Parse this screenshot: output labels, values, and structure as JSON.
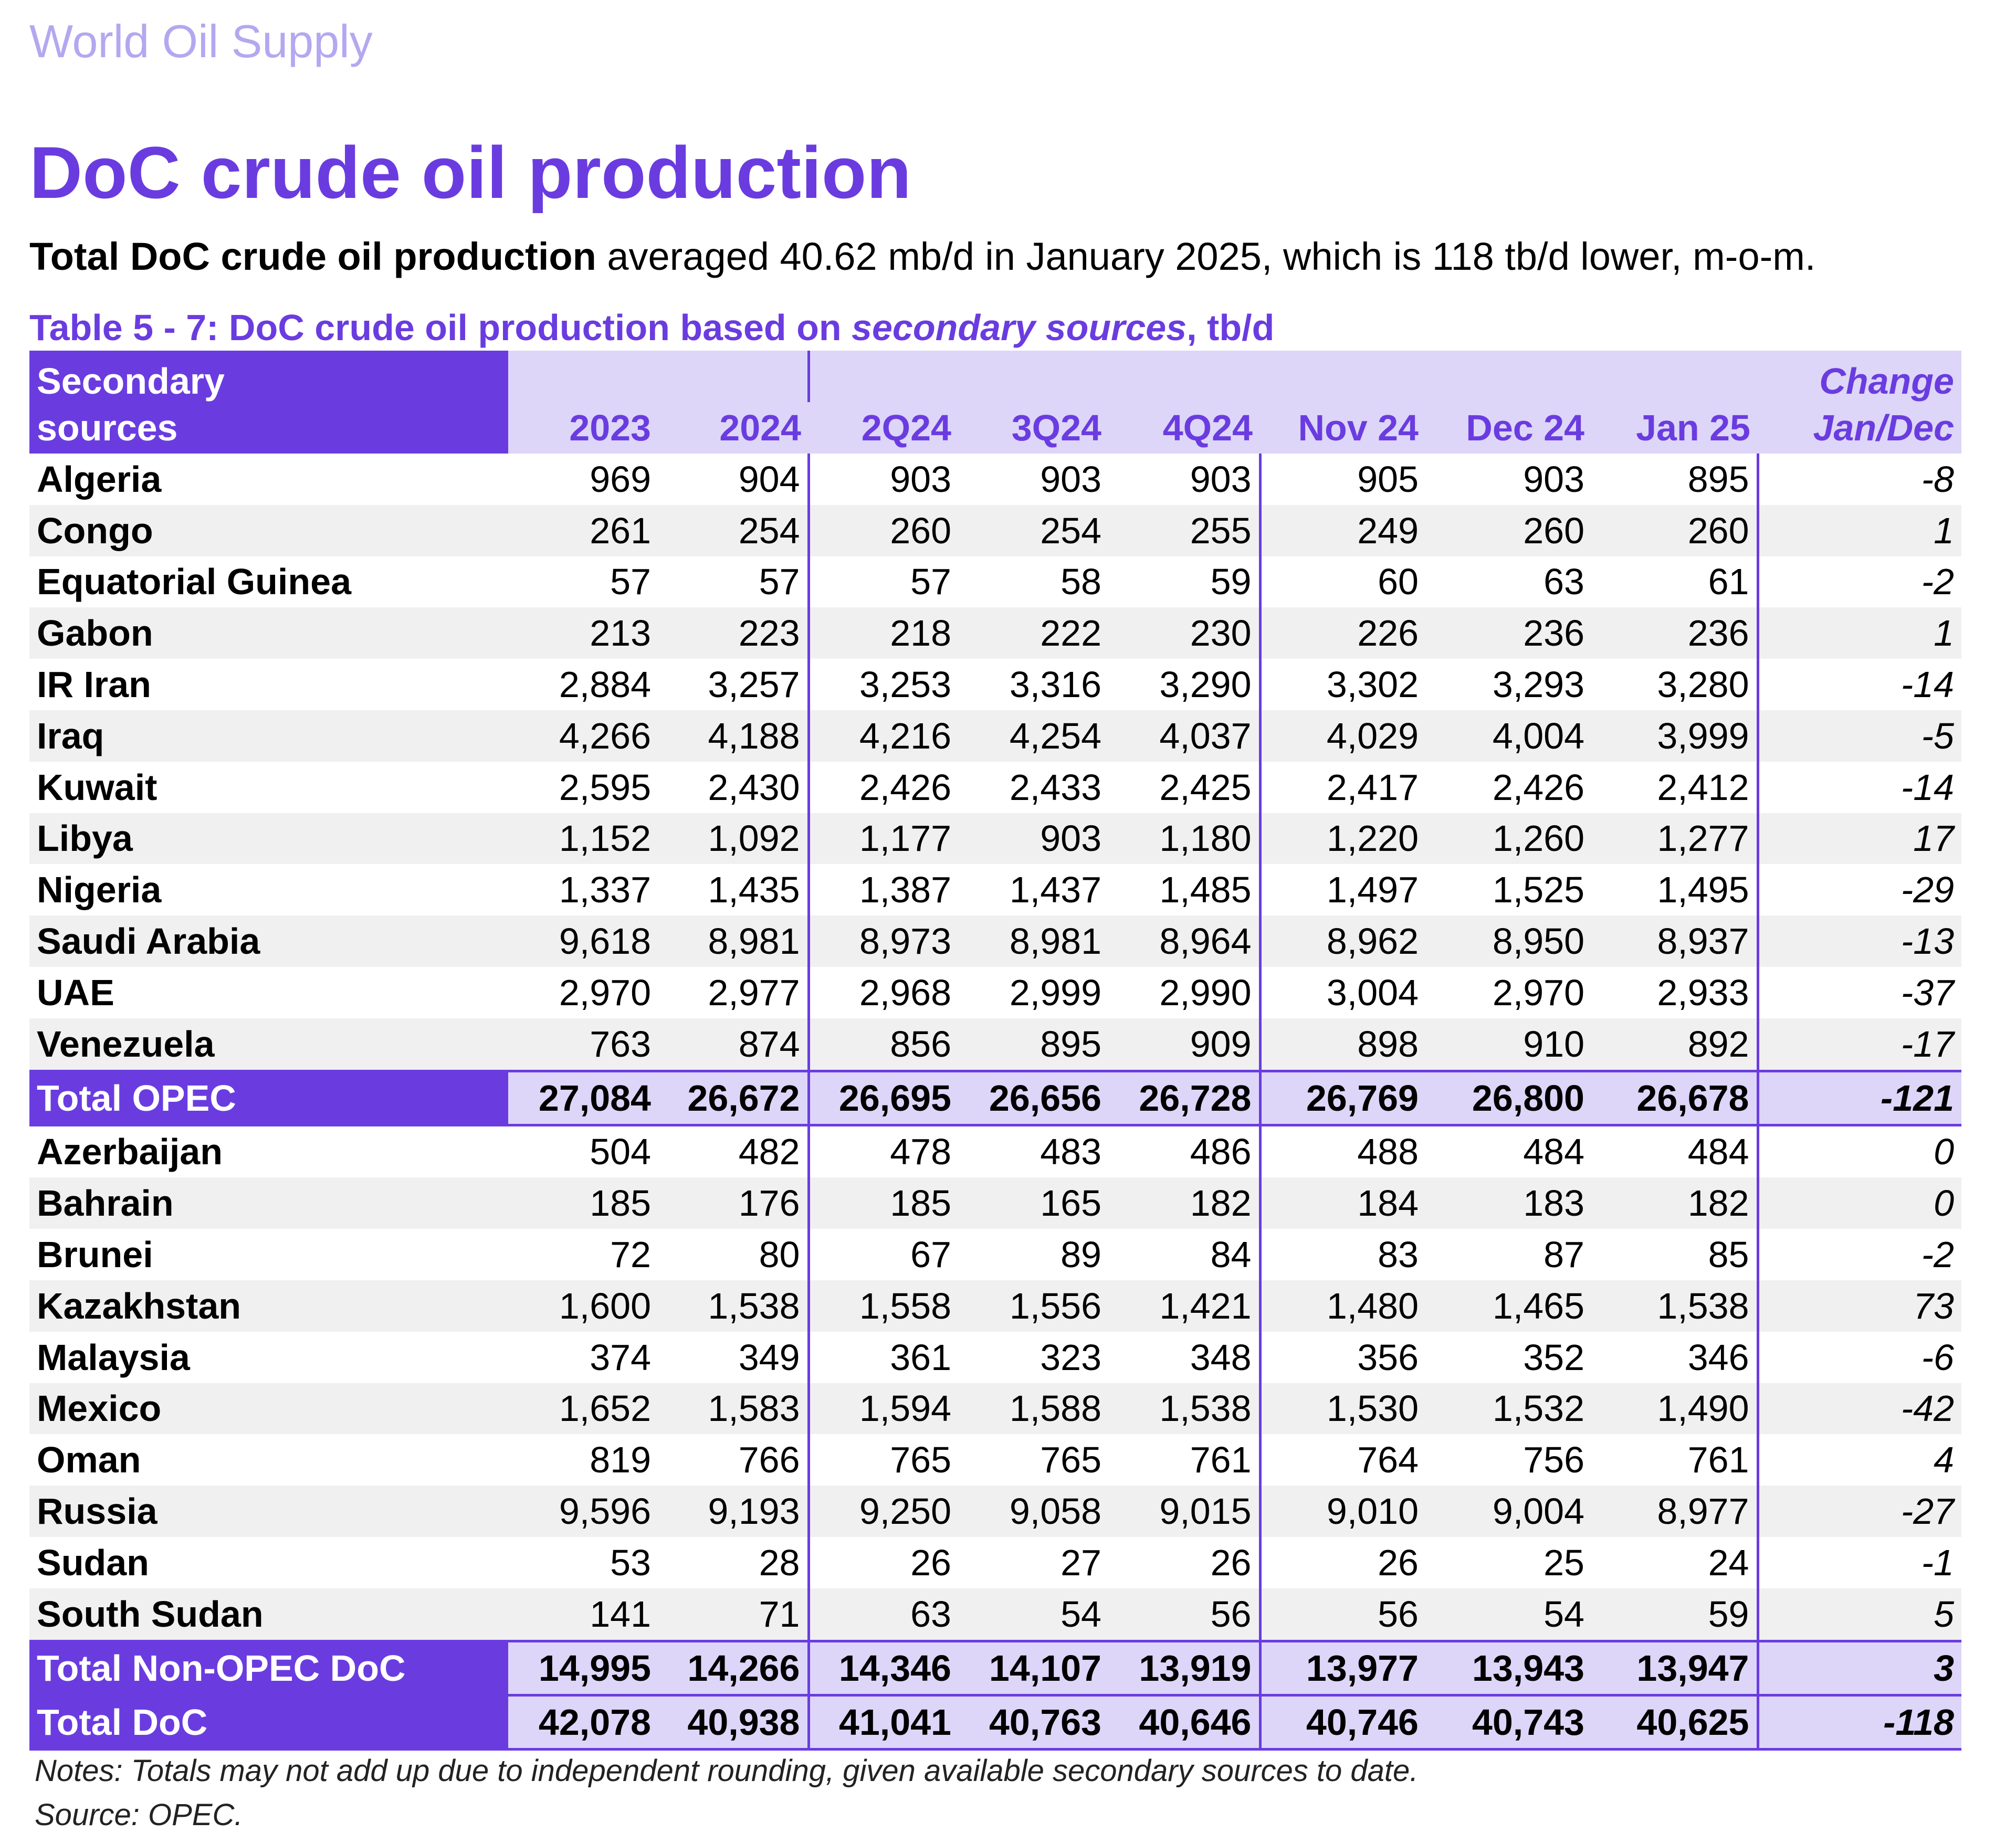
{
  "section_label": "World Oil Supply",
  "title": "DoC crude oil production",
  "lead_bold": "Total DoC crude oil production",
  "lead_rest": " averaged 40.62 mb/d in January 2025, which is 118 tb/d lower, m-o-m.",
  "caption_pre": "Table 5 - 7: DoC crude oil production based on ",
  "caption_italic": "secondary sources",
  "caption_post": ", tb/d",
  "header": {
    "src_line1": "Secondary",
    "src_line2": "sources",
    "columns": [
      "2023",
      "2024",
      "2Q24",
      "3Q24",
      "4Q24",
      "Nov 24",
      "Dec 24",
      "Jan 25"
    ],
    "change_line1": "Change",
    "change_line2": "Jan/Dec"
  },
  "opec_rows": [
    {
      "name": "Algeria",
      "values": [
        "969",
        "904",
        "903",
        "903",
        "903",
        "905",
        "903",
        "895"
      ],
      "change": "-8"
    },
    {
      "name": "Congo",
      "values": [
        "261",
        "254",
        "260",
        "254",
        "255",
        "249",
        "260",
        "260"
      ],
      "change": "1"
    },
    {
      "name": "Equatorial Guinea",
      "values": [
        "57",
        "57",
        "57",
        "58",
        "59",
        "60",
        "63",
        "61"
      ],
      "change": "-2"
    },
    {
      "name": "Gabon",
      "values": [
        "213",
        "223",
        "218",
        "222",
        "230",
        "226",
        "236",
        "236"
      ],
      "change": "1"
    },
    {
      "name": "IR Iran",
      "values": [
        "2,884",
        "3,257",
        "3,253",
        "3,316",
        "3,290",
        "3,302",
        "3,293",
        "3,280"
      ],
      "change": "-14"
    },
    {
      "name": "Iraq",
      "values": [
        "4,266",
        "4,188",
        "4,216",
        "4,254",
        "4,037",
        "4,029",
        "4,004",
        "3,999"
      ],
      "change": "-5"
    },
    {
      "name": "Kuwait",
      "values": [
        "2,595",
        "2,430",
        "2,426",
        "2,433",
        "2,425",
        "2,417",
        "2,426",
        "2,412"
      ],
      "change": "-14"
    },
    {
      "name": "Libya",
      "values": [
        "1,152",
        "1,092",
        "1,177",
        "903",
        "1,180",
        "1,220",
        "1,260",
        "1,277"
      ],
      "change": "17"
    },
    {
      "name": "Nigeria",
      "values": [
        "1,337",
        "1,435",
        "1,387",
        "1,437",
        "1,485",
        "1,497",
        "1,525",
        "1,495"
      ],
      "change": "-29"
    },
    {
      "name": "Saudi Arabia",
      "values": [
        "9,618",
        "8,981",
        "8,973",
        "8,981",
        "8,964",
        "8,962",
        "8,950",
        "8,937"
      ],
      "change": "-13"
    },
    {
      "name": "UAE",
      "values": [
        "2,970",
        "2,977",
        "2,968",
        "2,999",
        "2,990",
        "3,004",
        "2,970",
        "2,933"
      ],
      "change": "-37"
    },
    {
      "name": "Venezuela",
      "values": [
        "763",
        "874",
        "856",
        "895",
        "909",
        "898",
        "910",
        "892"
      ],
      "change": "-17"
    }
  ],
  "total_opec": {
    "name": "Total  OPEC",
    "values": [
      "27,084",
      "26,672",
      "26,695",
      "26,656",
      "26,728",
      "26,769",
      "26,800",
      "26,678"
    ],
    "change": "-121"
  },
  "non_opec_rows": [
    {
      "name": "Azerbaijan",
      "values": [
        "504",
        "482",
        "478",
        "483",
        "486",
        "488",
        "484",
        "484"
      ],
      "change": "0"
    },
    {
      "name": "Bahrain",
      "values": [
        "185",
        "176",
        "185",
        "165",
        "182",
        "184",
        "183",
        "182"
      ],
      "change": "0"
    },
    {
      "name": "Brunei",
      "values": [
        "72",
        "80",
        "67",
        "89",
        "84",
        "83",
        "87",
        "85"
      ],
      "change": "-2"
    },
    {
      "name": "Kazakhstan",
      "values": [
        "1,600",
        "1,538",
        "1,558",
        "1,556",
        "1,421",
        "1,480",
        "1,465",
        "1,538"
      ],
      "change": "73"
    },
    {
      "name": "Malaysia",
      "values": [
        "374",
        "349",
        "361",
        "323",
        "348",
        "356",
        "352",
        "346"
      ],
      "change": "-6"
    },
    {
      "name": "Mexico",
      "values": [
        "1,652",
        "1,583",
        "1,594",
        "1,588",
        "1,538",
        "1,530",
        "1,532",
        "1,490"
      ],
      "change": "-42"
    },
    {
      "name": "Oman",
      "values": [
        "819",
        "766",
        "765",
        "765",
        "761",
        "764",
        "756",
        "761"
      ],
      "change": "4"
    },
    {
      "name": "Russia",
      "values": [
        "9,596",
        "9,193",
        "9,250",
        "9,058",
        "9,015",
        "9,010",
        "9,004",
        "8,977"
      ],
      "change": "-27"
    },
    {
      "name": "Sudan",
      "values": [
        "53",
        "28",
        "26",
        "27",
        "26",
        "26",
        "25",
        "24"
      ],
      "change": "-1"
    },
    {
      "name": "South Sudan",
      "values": [
        "141",
        "71",
        "63",
        "54",
        "56",
        "56",
        "54",
        "59"
      ],
      "change": "5"
    }
  ],
  "total_non_opec": {
    "name": "Total Non-OPEC DoC",
    "values": [
      "14,995",
      "14,266",
      "14,346",
      "14,107",
      "13,919",
      "13,977",
      "13,943",
      "13,947"
    ],
    "change": "3"
  },
  "total_doc": {
    "name": "Total DoC",
    "values": [
      "42,078",
      "40,938",
      "41,041",
      "40,763",
      "40,646",
      "40,746",
      "40,743",
      "40,625"
    ],
    "change": "-118"
  },
  "notes": "Notes: Totals may not add up due to independent rounding, given available secondary sources to date.",
  "source": "Source: OPEC.",
  "colors": {
    "accent": "#6a3ce0",
    "header_bg": "#ddd6f8",
    "section_label": "#b3a8f0",
    "stripe": "#f0f0f0"
  }
}
